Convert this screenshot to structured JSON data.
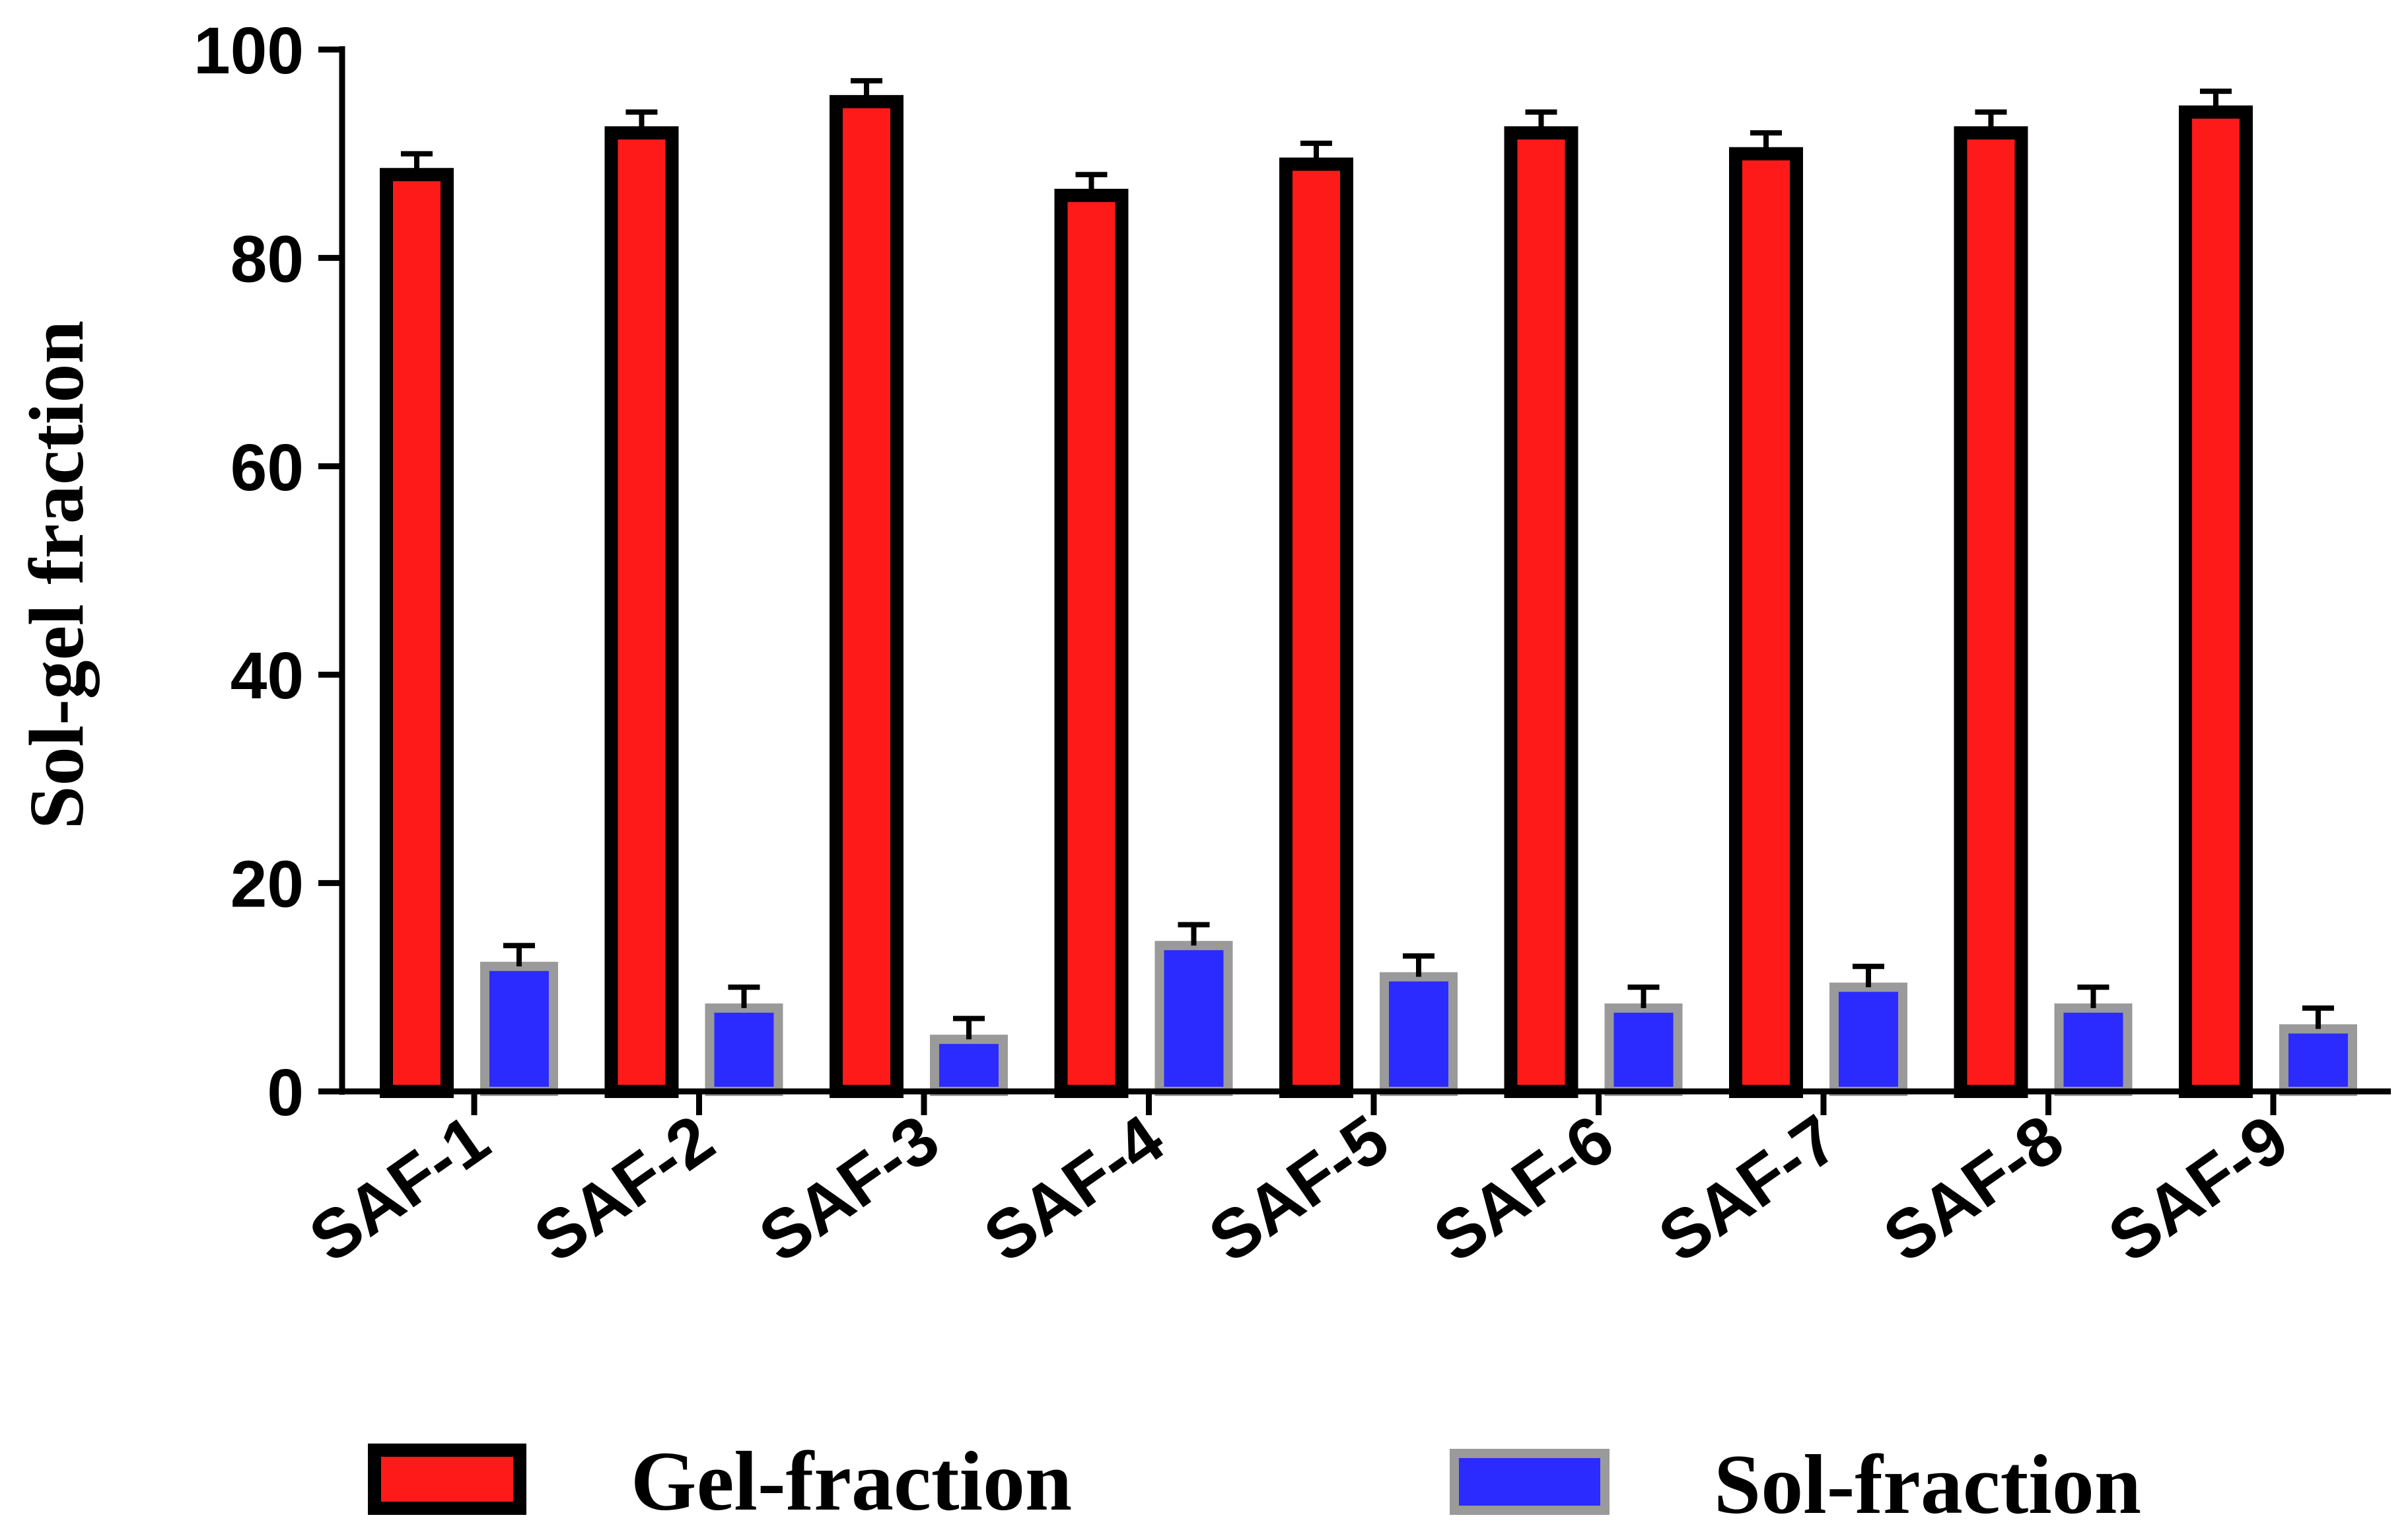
{
  "chart_data": {
    "type": "bar",
    "title": "",
    "xlabel": "",
    "ylabel": "Sol-gel fraction",
    "ylim": [
      0,
      100
    ],
    "yticks": [
      0,
      20,
      40,
      60,
      80,
      100
    ],
    "ytick_labels": [
      "0",
      "20",
      "40",
      "60",
      "80",
      "100"
    ],
    "grid": false,
    "legend_position": "bottom",
    "categories": [
      "SAF-1",
      "SAF-2",
      "SAF-3",
      "SAF-4",
      "SAF-5",
      "SAF-6",
      "SAF-7",
      "SAF-8",
      "SAF-9"
    ],
    "series": [
      {
        "name": "Gel-fraction",
        "fill": "#ff1a1a",
        "border": "#000000",
        "values": [
          88,
          92,
          95,
          86,
          89,
          92,
          90,
          92,
          94
        ],
        "errors": [
          2,
          2,
          2,
          2,
          2,
          2,
          2,
          2,
          2
        ]
      },
      {
        "name": "Sol-fraction",
        "fill": "#2b2bff",
        "border": "#9a9a9a",
        "values": [
          12,
          8,
          5,
          14,
          11,
          8,
          10,
          8,
          6
        ],
        "errors": [
          2,
          2,
          2,
          2,
          2,
          2,
          2,
          2,
          2
        ]
      }
    ]
  }
}
